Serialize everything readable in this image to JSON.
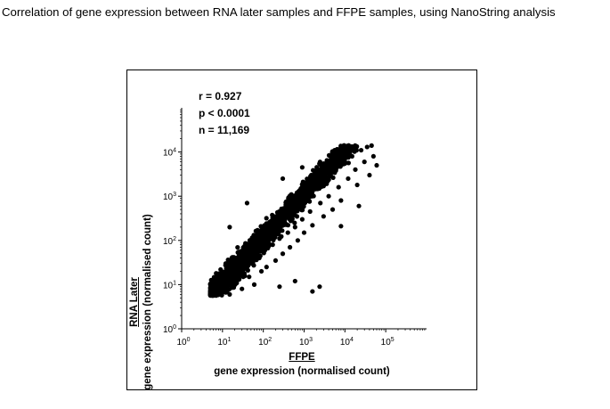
{
  "page": {
    "title": "Correlation of gene expression between RNA later samples and FFPE samples, using NanoString analysis"
  },
  "chart_data": {
    "type": "scatter",
    "title": "Correlation of gene expression between RNA later samples and FFPE samples, using NanoString analysis",
    "xlabel_line1": "FFPE",
    "xlabel_line2": "gene expression (normalised count)",
    "ylabel_line1": "RNA Later",
    "ylabel_line2": "gene expression (normalised count)",
    "x_scale": "log10",
    "y_scale": "log10",
    "xlim": [
      1,
      1000000
    ],
    "ylim": [
      1,
      100000
    ],
    "x_ticks": [
      1,
      10,
      100,
      1000,
      10000,
      100000
    ],
    "y_ticks": [
      1,
      10,
      100,
      1000,
      10000
    ],
    "x_tick_labels": [
      {
        "base": "10",
        "exp": "0"
      },
      {
        "base": "10",
        "exp": "1"
      },
      {
        "base": "10",
        "exp": "2"
      },
      {
        "base": "10",
        "exp": "3"
      },
      {
        "base": "10",
        "exp": "4"
      },
      {
        "base": "10",
        "exp": "5"
      }
    ],
    "y_tick_labels": [
      {
        "base": "10",
        "exp": "0"
      },
      {
        "base": "10",
        "exp": "1"
      },
      {
        "base": "10",
        "exp": "2"
      },
      {
        "base": "10",
        "exp": "3"
      },
      {
        "base": "10",
        "exp": "4"
      }
    ],
    "grid": false,
    "legend": "none",
    "point_color": "#000000",
    "annotations": {
      "r": "r = 0.927",
      "p": "p < 0.0001",
      "n": "n = 11,169"
    },
    "points": [
      [
        5,
        6
      ],
      [
        6,
        12
      ],
      [
        7,
        18
      ],
      [
        8,
        6
      ],
      [
        9,
        22
      ],
      [
        10,
        8
      ],
      [
        12,
        30
      ],
      [
        14,
        10
      ],
      [
        15,
        6
      ],
      [
        18,
        40
      ],
      [
        20,
        12
      ],
      [
        22,
        18
      ],
      [
        25,
        55
      ],
      [
        28,
        20
      ],
      [
        30,
        8
      ],
      [
        35,
        70
      ],
      [
        40,
        25
      ],
      [
        45,
        15
      ],
      [
        50,
        90
      ],
      [
        55,
        30
      ],
      [
        60,
        10
      ],
      [
        70,
        120
      ],
      [
        80,
        40
      ],
      [
        90,
        20
      ],
      [
        100,
        150
      ],
      [
        110,
        60
      ],
      [
        120,
        25
      ],
      [
        150,
        200
      ],
      [
        170,
        80
      ],
      [
        200,
        35
      ],
      [
        220,
        280
      ],
      [
        250,
        110
      ],
      [
        300,
        50
      ],
      [
        350,
        400
      ],
      [
        400,
        150
      ],
      [
        450,
        70
      ],
      [
        500,
        550
      ],
      [
        600,
        200
      ],
      [
        700,
        100
      ],
      [
        800,
        800
      ],
      [
        900,
        300
      ],
      [
        1000,
        150
      ],
      [
        1200,
        1100
      ],
      [
        1400,
        450
      ],
      [
        1600,
        220
      ],
      [
        2000,
        1600
      ],
      [
        2500,
        700
      ],
      [
        3000,
        350
      ],
      [
        3500,
        2500
      ],
      [
        4000,
        1000
      ],
      [
        5000,
        500
      ],
      [
        6000,
        3800
      ],
      [
        7000,
        1600
      ],
      [
        8000,
        800
      ],
      [
        10000,
        5500
      ],
      [
        12000,
        2500
      ],
      [
        15000,
        8000
      ],
      [
        18000,
        4000
      ],
      [
        20000,
        1800
      ],
      [
        25000,
        11000
      ],
      [
        30000,
        6000
      ],
      [
        35000,
        13000
      ],
      [
        40000,
        3000
      ],
      [
        45000,
        14000
      ],
      [
        50000,
        8000
      ],
      [
        60000,
        5000
      ],
      [
        2400,
        9
      ],
      [
        1600,
        7
      ],
      [
        8000,
        210
      ],
      [
        22000,
        600
      ],
      [
        1500,
        3000
      ],
      [
        300,
        2500
      ],
      [
        3000,
        3600
      ],
      [
        900,
        4500
      ],
      [
        15,
        200
      ],
      [
        40,
        700
      ],
      [
        250,
        9
      ],
      [
        600,
        12
      ]
    ]
  }
}
